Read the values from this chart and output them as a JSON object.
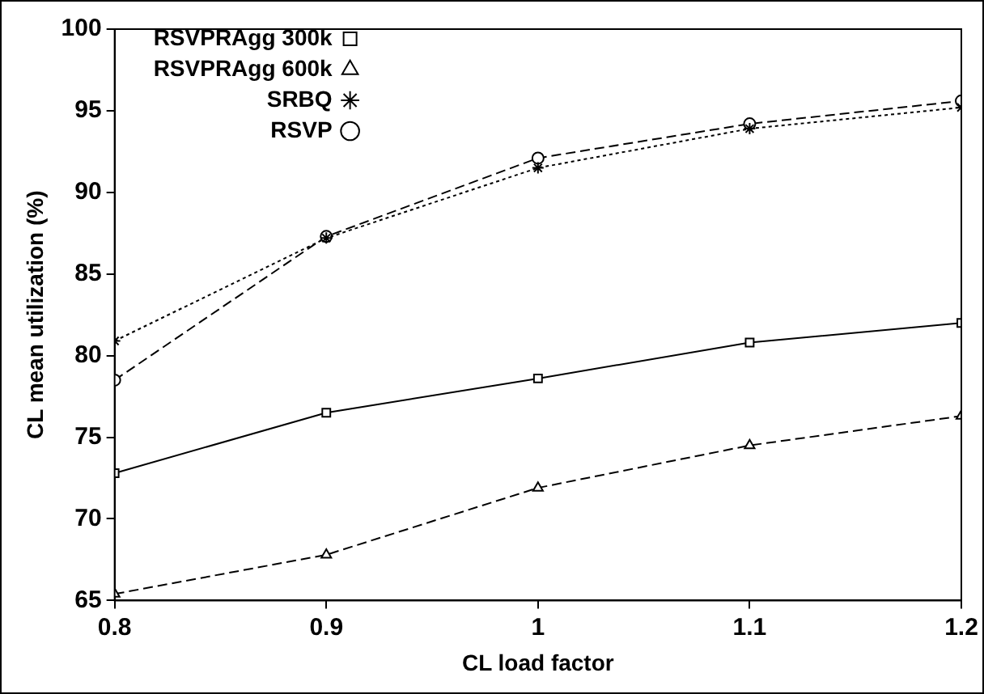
{
  "chart_data": {
    "type": "line",
    "xlabel": "CL load factor",
    "ylabel": "CL mean utilization (%)",
    "x": [
      0.8,
      0.9,
      1,
      1.1,
      1.2
    ],
    "xlim": [
      0.8,
      1.2
    ],
    "xticks": [
      0.8,
      0.9,
      1,
      1.1,
      1.2
    ],
    "ylim": [
      65,
      100
    ],
    "yticks": [
      65,
      70,
      75,
      80,
      85,
      90,
      95,
      100
    ],
    "grid": false,
    "legend": "top left",
    "series": [
      {
        "name": "RSVPRAgg 300k",
        "color": "#000000",
        "marker": "square",
        "line_style": "solid",
        "values": [
          72.8,
          76.5,
          78.6,
          80.8,
          82.0
        ]
      },
      {
        "name": "RSVPRAgg 600k",
        "color": "#000000",
        "marker": "triangle",
        "line_style": "dashed",
        "values": [
          65.4,
          67.8,
          71.9,
          74.5,
          76.3
        ]
      },
      {
        "name": "SRBQ",
        "color": "#000000",
        "marker": "cross",
        "line_style": "dotted",
        "values": [
          80.9,
          87.2,
          91.5,
          93.9,
          95.2
        ]
      },
      {
        "name": "RSVP",
        "color": "#000000",
        "marker": "circle",
        "line_style": "dashed",
        "values": [
          78.5,
          87.3,
          92.1,
          94.2,
          95.6
        ]
      }
    ]
  }
}
